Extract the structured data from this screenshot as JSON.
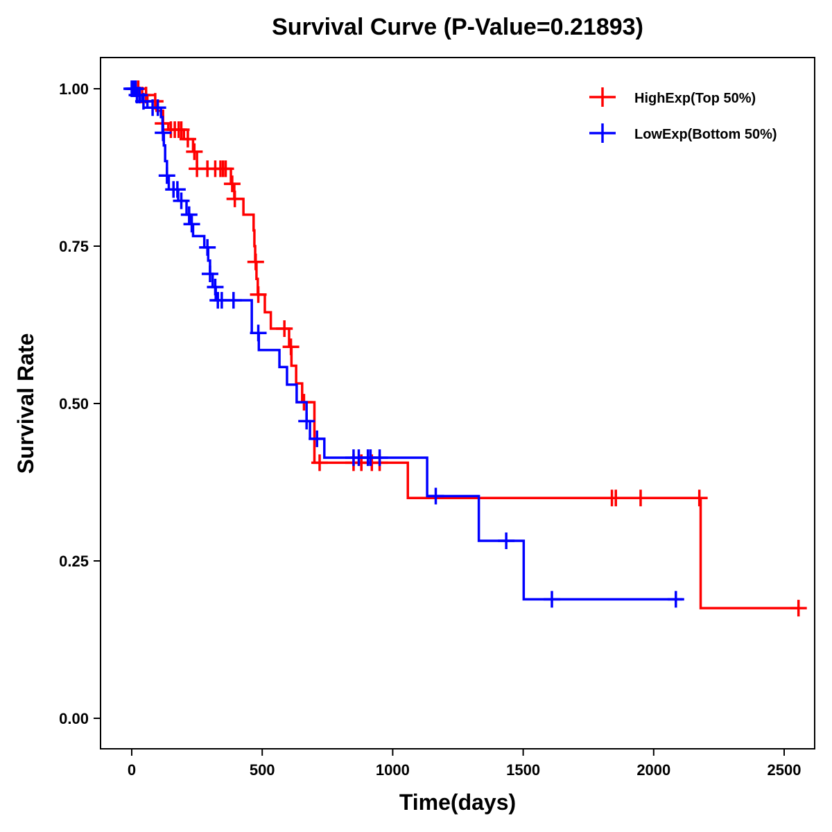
{
  "chart_data": {
    "type": "line",
    "title": "Survival Curve (P-Value=0.21893)",
    "xlabel": "Time(days)",
    "ylabel": "Survival Rate",
    "xlim": [
      -115,
      2630
    ],
    "ylim": [
      -0.05,
      1.05
    ],
    "xticks": [
      0,
      500,
      1000,
      1500,
      2000,
      2500
    ],
    "xtick_labels": [
      "0",
      "500",
      "1000",
      "1500",
      "2000",
      "2500"
    ],
    "yticks": [
      0,
      0.25,
      0.5,
      0.75,
      1.0
    ],
    "ytick_labels": [
      "0.00",
      "0.25",
      "0.50",
      "0.75",
      "1.00"
    ],
    "grid": false,
    "legend_position": "top-right",
    "series": [
      {
        "name": "HighExp(Top 50%)",
        "color": "#ff0000",
        "steps": [
          [
            0,
            1.0
          ],
          [
            30,
            0.99
          ],
          [
            60,
            0.98
          ],
          [
            95,
            0.965
          ],
          [
            120,
            0.945
          ],
          [
            140,
            0.935
          ],
          [
            200,
            0.92
          ],
          [
            235,
            0.9
          ],
          [
            250,
            0.873
          ],
          [
            380,
            0.849
          ],
          [
            393,
            0.825
          ],
          [
            428,
            0.8
          ],
          [
            467,
            0.775
          ],
          [
            470,
            0.75
          ],
          [
            473,
            0.725
          ],
          [
            478,
            0.698
          ],
          [
            483,
            0.673
          ],
          [
            510,
            0.645
          ],
          [
            533,
            0.619
          ],
          [
            603,
            0.59
          ],
          [
            612,
            0.56
          ],
          [
            630,
            0.532
          ],
          [
            653,
            0.502
          ],
          [
            700,
            0.406
          ],
          [
            1058,
            0.35
          ],
          [
            2180,
            0.175
          ]
        ],
        "end": 2555,
        "censor_times": [
          15,
          25,
          40,
          55,
          90,
          120,
          150,
          165,
          180,
          190,
          215,
          240,
          250,
          290,
          320,
          340,
          350,
          360,
          385,
          395,
          475,
          485,
          585,
          610,
          660,
          720,
          850,
          880,
          920,
          950,
          1840,
          1855,
          1950,
          2175,
          2555
        ]
      },
      {
        "name": "LowExp(Bottom 50%)",
        "color": "#0000ff",
        "steps": [
          [
            0,
            1.0
          ],
          [
            20,
            0.99
          ],
          [
            40,
            0.98
          ],
          [
            60,
            0.97
          ],
          [
            112,
            0.955
          ],
          [
            118,
            0.93
          ],
          [
            123,
            0.91
          ],
          [
            128,
            0.885
          ],
          [
            135,
            0.862
          ],
          [
            142,
            0.84
          ],
          [
            178,
            0.822
          ],
          [
            210,
            0.8
          ],
          [
            225,
            0.785
          ],
          [
            235,
            0.766
          ],
          [
            278,
            0.748
          ],
          [
            293,
            0.727
          ],
          [
            300,
            0.706
          ],
          [
            310,
            0.685
          ],
          [
            322,
            0.664
          ],
          [
            460,
            0.612
          ],
          [
            487,
            0.585
          ],
          [
            566,
            0.558
          ],
          [
            595,
            0.53
          ],
          [
            632,
            0.502
          ],
          [
            670,
            0.472
          ],
          [
            683,
            0.444
          ],
          [
            738,
            0.414
          ],
          [
            1132,
            0.353
          ],
          [
            1330,
            0.282
          ],
          [
            1502,
            0.189
          ]
        ],
        "end": 2110,
        "censor_times": [
          0,
          5,
          10,
          15,
          20,
          30,
          45,
          80,
          100,
          120,
          135,
          160,
          175,
          190,
          220,
          230,
          290,
          300,
          320,
          330,
          345,
          390,
          485,
          670,
          710,
          850,
          870,
          905,
          915,
          950,
          1165,
          1435,
          1610,
          2085
        ]
      }
    ]
  }
}
